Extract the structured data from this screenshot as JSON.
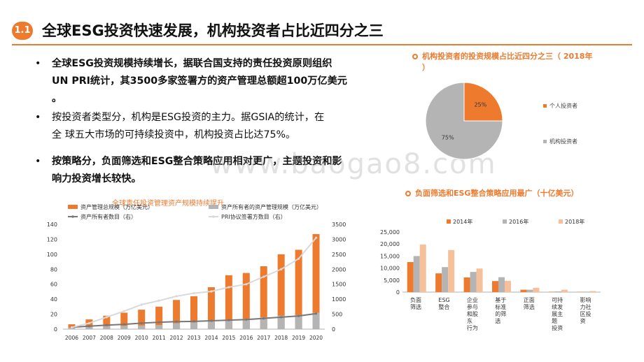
{
  "header": {
    "badge": "1.1",
    "title": "全球ESG投资快速发展，机构投资者占比近四分之三"
  },
  "bullets": [
    {
      "marker": "•",
      "lines": [
        "全球ESG投资规模持续增长，据联合国支持的责任投资原则组织",
        "UN PRI统计，其3500多家签署方的资产管理总额超100万亿美元",
        "。"
      ]
    },
    {
      "marker": "•",
      "lines": [
        "按投资者类型分，机构是ESG投资的主力。据GSIA的统计，在",
        "全  球五大市场的可持续投资中，机构投资占比达75%。"
      ]
    },
    {
      "marker": "•",
      "lines": [
        "按策略分，负面筛选和ESG整合策略应用相对更广，主题投资和影",
        "响力投资增长较快。"
      ]
    }
  ],
  "watermark": "www.baogao8.com",
  "colors": {
    "accent": "#ee7a2e",
    "gray": "#b4b4b4",
    "light_orange": "#f6c09a",
    "dark_line": "#777777"
  },
  "pie_section": {
    "title_lines": [
      "机构投资者的投资规模占比近四分之三（ 2018年",
      "）"
    ],
    "icon": "ring-icon",
    "chart_data": {
      "type": "pie",
      "slices": [
        {
          "name": "个人投资者",
          "value": 25,
          "label": "25%",
          "color": "#ee7a2e"
        },
        {
          "name": "机构投资者",
          "value": 75,
          "label": "75%",
          "color": "#b4b4b4"
        }
      ],
      "legend": "right"
    }
  },
  "strategy_section": {
    "title": "负面筛选和ESG整合策略应用最广（十亿美元）",
    "icon": "ring-icon",
    "chart_data": {
      "type": "bar",
      "categories": [
        "负面筛选",
        "ESG整合",
        "企业参与和股东行为",
        "基于标准的筛选",
        "正面筛选",
        "可持续发展主题投资",
        "影响力社区投资"
      ],
      "category_labels": [
        [
          "负面",
          "筛选"
        ],
        [
          "ESG",
          "整合"
        ],
        [
          "企业",
          "参与",
          "和股",
          "东",
          "行为"
        ],
        [
          "基于",
          "标准",
          "的筛",
          "选"
        ],
        [
          "正面",
          "筛选"
        ],
        [
          "可持",
          "续发",
          "展主",
          "题",
          "投资"
        ],
        [
          "影响",
          "力社",
          "区投",
          "资"
        ]
      ],
      "series": [
        {
          "name": "2014年",
          "color": "#ee7a2e",
          "values": [
            12500,
            7800,
            6100,
            4600,
            1000,
            150,
            100
          ]
        },
        {
          "name": "2016年",
          "color": "#b4b4b4",
          "values": [
            15000,
            10400,
            8400,
            6200,
            1000,
            300,
            200
          ]
        },
        {
          "name": "2018年",
          "color": "#f6c09a",
          "values": [
            19800,
            17500,
            9800,
            4700,
            1800,
            1000,
            450
          ]
        }
      ],
      "ylim": [
        0,
        25000
      ],
      "yticks": [
        "0",
        "5,000",
        "10,000",
        "15,000",
        "20,000",
        "25,000"
      ],
      "legend": "top"
    }
  },
  "growth_section": {
    "title": "全球责任投资管理资产规模持续提升",
    "chart_data": {
      "type": "bar",
      "categories": [
        "2006",
        "2007",
        "2008",
        "2009",
        "2010",
        "2011",
        "2012",
        "2013",
        "2014",
        "2015",
        "2016",
        "2017",
        "2018",
        "2019",
        "2020"
      ],
      "series": [
        {
          "name": "资产管理总规模（万亿美元）",
          "kind": "bar",
          "axis": "left",
          "color": "#ee7a2e",
          "values": [
            6.5,
            13,
            18,
            22,
            26,
            30,
            39,
            44,
            56,
            72,
            75,
            84,
            100,
            106,
            127
          ]
        },
        {
          "name": "资产所有者的资产管理规模（万亿美元）",
          "kind": "bar",
          "axis": "left",
          "color": "#b4b4b4",
          "values": [
            2,
            3,
            4,
            4.5,
            5,
            5.5,
            8,
            9,
            11,
            13,
            14,
            16,
            18,
            19,
            22
          ]
        },
        {
          "name": "资产所有者数目（右）",
          "kind": "line",
          "axis": "right",
          "color": "#777777",
          "values": [
            65,
            100,
            135,
            160,
            200,
            230,
            250,
            260,
            280,
            300,
            320,
            360,
            400,
            440,
            520
          ]
        },
        {
          "name": "PRI协议签署方数目（右）",
          "kind": "line",
          "axis": "right",
          "color": "#d9d9d9",
          "values": [
            60,
            200,
            400,
            600,
            820,
            950,
            1100,
            1200,
            1260,
            1400,
            1500,
            1750,
            2000,
            2350,
            3050
          ]
        }
      ],
      "ylim": [
        0,
        140
      ],
      "yticks": [
        "0",
        "20",
        "40",
        "60",
        "80",
        "100",
        "120",
        "140"
      ],
      "y2lim": [
        0,
        3500
      ],
      "y2ticks": [
        "0",
        "500",
        "1000",
        "1500",
        "2000",
        "2500",
        "3000",
        "3500"
      ],
      "legend": "top"
    }
  }
}
